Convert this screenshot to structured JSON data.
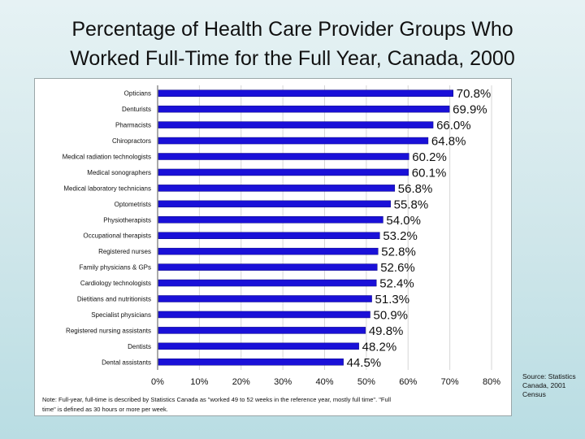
{
  "slide": {
    "title_line1": "Percentage of Health Care Provider Groups Who",
    "title_line2": "Worked Full-Time for the Full Year, Canada, 2000",
    "source": "Source: Statistics Canada, 2001 Census"
  },
  "chart_data": {
    "type": "bar",
    "orientation": "horizontal",
    "categories": [
      "Opticians",
      "Denturists",
      "Pharmacists",
      "Chiropractors",
      "Medical radiation technologists",
      "Medical sonographers",
      "Medical laboratory technicians",
      "Optometrists",
      "Physiotherapists",
      "Occupational therapists",
      "Registered nurses",
      "Family physicians & GPs",
      "Cardiology technologists",
      "Dietitians and nutritionists",
      "Specialist physicians",
      "Registered nursing assistants",
      "Dentists",
      "Dental assistants"
    ],
    "values": [
      70.8,
      69.9,
      66.0,
      64.8,
      60.2,
      60.1,
      56.8,
      55.8,
      54.0,
      53.2,
      52.8,
      52.6,
      52.4,
      51.3,
      50.9,
      49.8,
      48.2,
      44.5
    ],
    "value_labels": [
      "70.8%",
      "69.9%",
      "66.0%",
      "64.8%",
      "60.2%",
      "60.1%",
      "56.8%",
      "55.8%",
      "54.0%",
      "53.2%",
      "52.8%",
      "52.6%",
      "52.4%",
      "51.3%",
      "50.9%",
      "49.8%",
      "48.2%",
      "44.5%"
    ],
    "xlim": [
      0,
      80
    ],
    "x_ticks": [
      "0%",
      "10%",
      "20%",
      "30%",
      "40%",
      "50%",
      "60%",
      "70%",
      "80%"
    ],
    "bar_color": "#1a10d8",
    "grid": true,
    "title": "",
    "xlabel": "",
    "ylabel": "",
    "note": "Note: Full-year, full-time is described by Statistics Canada as \"worked 49 to 52 weeks in the reference year, mostly full time\". \"Full time\" is defined as 30 hours or more per week."
  }
}
